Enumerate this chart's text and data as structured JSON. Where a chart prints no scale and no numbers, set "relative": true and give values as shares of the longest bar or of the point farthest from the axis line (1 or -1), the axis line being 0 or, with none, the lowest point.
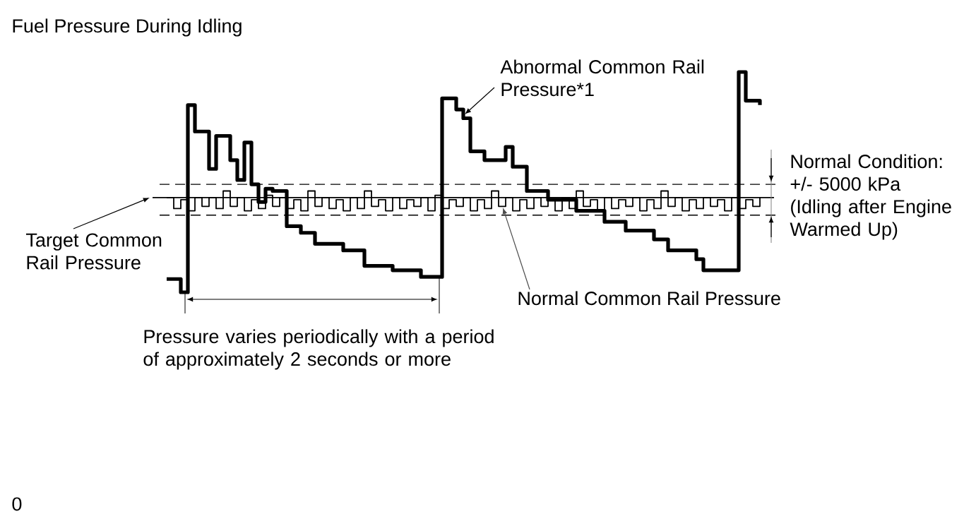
{
  "chart_data": {
    "type": "step",
    "title": "Fuel Pressure During Idling",
    "relative": true,
    "marker": "none",
    "categories": [
      null,
      null,
      null,
      null,
      null,
      null,
      null,
      null,
      null,
      null,
      null,
      null,
      null,
      null,
      null,
      null,
      null,
      null,
      null,
      null,
      null,
      null,
      null,
      null,
      null,
      null,
      null,
      null,
      null,
      null,
      null,
      null,
      null,
      null,
      null,
      null,
      null,
      null,
      null,
      null,
      null,
      null,
      null,
      null,
      null,
      null,
      null,
      null,
      null,
      null,
      null,
      null,
      null,
      null,
      null,
      null,
      null,
      null,
      null,
      null,
      null,
      null,
      null,
      null,
      null,
      null,
      null,
      null,
      null,
      null,
      null,
      null,
      null,
      null,
      null,
      null,
      null,
      null,
      null,
      null,
      null,
      null,
      null,
      null,
      null
    ],
    "series": [
      {
        "name": "Abnormal Common Rail Pressure*1",
        "color": "#000000",
        "values": [
          0.06,
          0.06,
          0,
          0.85,
          0.73,
          0.73,
          0.56,
          0.71,
          0.71,
          0.6,
          0.51,
          0.68,
          0.49,
          0.41,
          0.47,
          0.46,
          0.46,
          0.3,
          0.3,
          0.27,
          0.27,
          0.22,
          0.22,
          0.22,
          0.22,
          0.19,
          0.19,
          0.19,
          0.12,
          0.12,
          0.12,
          0.12,
          0.1,
          0.1,
          0.1,
          0.1,
          0.07,
          0.07,
          0.07,
          0.88,
          0.88,
          0.83,
          0.79,
          0.64,
          0.64,
          0.6,
          0.6,
          0.6,
          0.66,
          0.57,
          0.57,
          0.46,
          0.46,
          0.46,
          0.42,
          0.42,
          0.42,
          0.42,
          0.37,
          0.37,
          0.37,
          0.37,
          0.32,
          0.32,
          0.32,
          0.28,
          0.28,
          0.28,
          0.28,
          0.24,
          0.24,
          0.19,
          0.19,
          0.19,
          0.19,
          0.15,
          0.1,
          0.1,
          0.1,
          0.1,
          0.1,
          1.0,
          0.87,
          0.87,
          0.85
        ]
      },
      {
        "name": "Normal Common Rail Pressure",
        "color": "#000000",
        "values": [
          0.43,
          0.38,
          0.42,
          0.37,
          0.43,
          0.39,
          0.43,
          0.38,
          0.46,
          0.39,
          0.43,
          0.37,
          0.42,
          0.38,
          0.44,
          0.39,
          0.43,
          0.38,
          0.42,
          0.37,
          0.46,
          0.39,
          0.43,
          0.38,
          0.42,
          0.37,
          0.43,
          0.38,
          0.46,
          0.39,
          0.42,
          0.37,
          0.43,
          0.38,
          0.42,
          0.39,
          0.43,
          0.37,
          0.44,
          0.38,
          0.42,
          0.39,
          0.43,
          0.37,
          0.42,
          0.38,
          0.46,
          0.39,
          0.43,
          0.37,
          0.42,
          0.38,
          0.43,
          0.39,
          0.42,
          0.37,
          0.43,
          0.38,
          0.46,
          0.39,
          0.42,
          0.37,
          0.43,
          0.38,
          0.42,
          0.39,
          0.43,
          0.37,
          0.42,
          0.38,
          0.46,
          0.39,
          0.43,
          0.37,
          0.42,
          0.38,
          0.43,
          0.39,
          0.42,
          0.37,
          0.43,
          0.38,
          0.42,
          0.39,
          0.43
        ]
      }
    ],
    "ref_lines": [
      {
        "axis": "y",
        "value": 0.43,
        "label": "Target Common Rail Pressure",
        "line_style": "solid"
      },
      {
        "axis": "y",
        "value": 0.49,
        "line_style": "dashed"
      },
      {
        "axis": "y",
        "value": 0.35,
        "line_style": "dashed"
      }
    ],
    "annotations": [
      "Pressure varies periodically with a period of approximately 2 seconds or more",
      "Normal Condition:",
      "+/- 5000 kPa",
      "(Idling after Engine Warmed Up)",
      "0"
    ]
  }
}
